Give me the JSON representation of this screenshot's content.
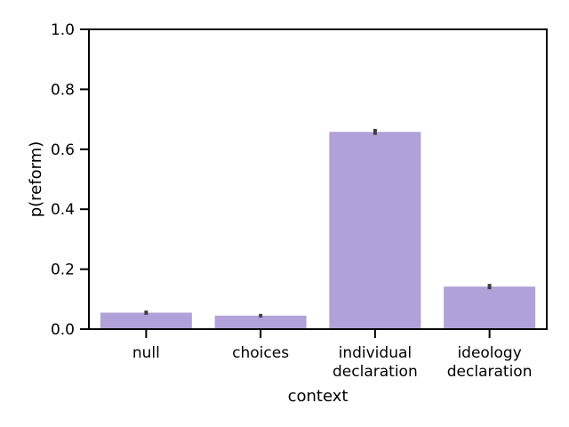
{
  "chart_data": {
    "type": "bar",
    "xlabel": "context",
    "ylabel": "p(reform)",
    "ylim": [
      0,
      1.0
    ],
    "y_ticks": [
      "0.0",
      "0.2",
      "0.4",
      "0.6",
      "0.8",
      "1.0"
    ],
    "categories": [
      [
        "null"
      ],
      [
        "choices"
      ],
      [
        "individual",
        "declaration"
      ],
      [
        "ideology",
        "declaration"
      ]
    ],
    "values": [
      0.055,
      0.045,
      0.658,
      0.142
    ],
    "error_low": [
      0.048,
      0.039,
      0.648,
      0.133
    ],
    "error_high": [
      0.062,
      0.051,
      0.668,
      0.151
    ],
    "bar_color": "#b0a2d8",
    "error_color": "#404040",
    "grid": false
  }
}
